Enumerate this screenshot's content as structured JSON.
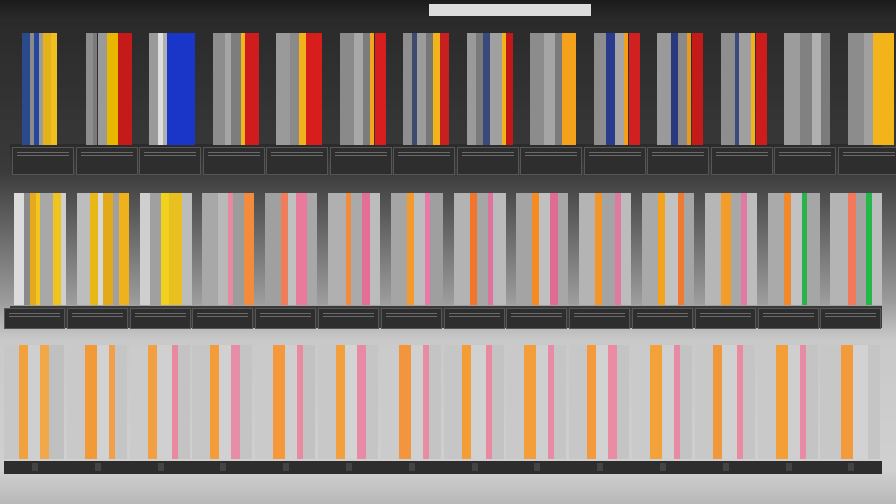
{
  "header": {
    "title": ""
  },
  "rows": [
    {
      "name": "top-row",
      "panels": [
        {
          "label": "",
          "stripes": [
            [
              "#2a4a8c",
              0.18
            ],
            [
              "#8b8b8b",
              0.08
            ],
            [
              "#27479a",
              0.1
            ],
            [
              "#9c9c9c",
              0.1
            ],
            [
              "#e6b21a",
              0.18
            ],
            [
              "#f0c020",
              0.12
            ]
          ]
        },
        {
          "label": "",
          "stripes": [
            [
              "#8d8d8d",
              0.15
            ],
            [
              "#7a7a7a",
              0.1
            ],
            [
              "#9a9a9a",
              0.2
            ],
            [
              "#e8b800",
              0.25
            ],
            [
              "#c41a1a",
              0.3
            ]
          ]
        },
        {
          "label": "",
          "stripes": [
            [
              "#9a9a9a",
              0.2
            ],
            [
              "#dedede",
              0.1
            ],
            [
              "#b0b0b0",
              0.1
            ],
            [
              "#1a36c8",
              0.6
            ]
          ]
        },
        {
          "label": "",
          "stripes": [
            [
              "#8d8d8d",
              0.25
            ],
            [
              "#a5a5a5",
              0.15
            ],
            [
              "#7d7d7d",
              0.2
            ],
            [
              "#f0b818",
              0.1
            ],
            [
              "#d01c1c",
              0.3
            ]
          ]
        },
        {
          "label": "",
          "stripes": [
            [
              "#9a9a9a",
              0.3
            ],
            [
              "#8a8a8a",
              0.2
            ],
            [
              "#f2b21c",
              0.15
            ],
            [
              "#d81d1d",
              0.35
            ]
          ]
        },
        {
          "label": "",
          "stripes": [
            [
              "#8a8a8a",
              0.3
            ],
            [
              "#a8a8a8",
              0.2
            ],
            [
              "#7c7c7c",
              0.15
            ],
            [
              "#f2a81a",
              0.1
            ],
            [
              "#d81e1e",
              0.25
            ]
          ]
        },
        {
          "label": "",
          "stripes": [
            [
              "#8e8e8e",
              0.2
            ],
            [
              "#3e4b6e",
              0.1
            ],
            [
              "#9c9c9c",
              0.2
            ],
            [
              "#777",
              0.15
            ],
            [
              "#f0b41a",
              0.15
            ],
            [
              "#c62020",
              0.2
            ]
          ]
        },
        {
          "label": "",
          "stripes": [
            [
              "#9a9a9a",
              0.2
            ],
            [
              "#7a7a7a",
              0.15
            ],
            [
              "#384a7a",
              0.15
            ],
            [
              "#a0a0a0",
              0.25
            ],
            [
              "#f0b41a",
              0.1
            ],
            [
              "#c41818",
              0.15
            ]
          ]
        },
        {
          "label": "",
          "stripes": [
            [
              "#8c8c8c",
              0.3
            ],
            [
              "#a5a5a5",
              0.25
            ],
            [
              "#7b7b7b",
              0.15
            ],
            [
              "#f4a11c",
              0.3
            ]
          ]
        },
        {
          "label": "",
          "stripes": [
            [
              "#8d8d8d",
              0.25
            ],
            [
              "#2a3b8e",
              0.2
            ],
            [
              "#a5a5a5",
              0.2
            ],
            [
              "#f2a01a",
              0.1
            ],
            [
              "#d21f1f",
              0.25
            ]
          ]
        },
        {
          "label": "",
          "stripes": [
            [
              "#9a9a9a",
              0.3
            ],
            [
              "#2a3a7c",
              0.15
            ],
            [
              "#8a8a8a",
              0.2
            ],
            [
              "#e89a1a",
              0.1
            ],
            [
              "#c51a1a",
              0.25
            ]
          ]
        },
        {
          "label": "",
          "stripes": [
            [
              "#8e8e8e",
              0.3
            ],
            [
              "#3b4a7c",
              0.1
            ],
            [
              "#a0a0a0",
              0.25
            ],
            [
              "#f2b21a",
              0.1
            ],
            [
              "#ce1c1c",
              0.25
            ]
          ]
        },
        {
          "label": "",
          "stripes": [
            [
              "#9c9c9c",
              0.35
            ],
            [
              "#818181",
              0.25
            ],
            [
              "#b0b0b0",
              0.2
            ],
            [
              "#7b7b7b",
              0.2
            ]
          ]
        },
        {
          "label": "",
          "stripes": [
            [
              "#8c8c8c",
              0.35
            ],
            [
              "#a0a0a0",
              0.2
            ],
            [
              "#f2b418",
              0.45
            ]
          ]
        }
      ]
    },
    {
      "name": "middle-row",
      "panels": [
        {
          "label": "",
          "stripes": [
            [
              "#dcdcdc",
              0.2
            ],
            [
              "#8a8a8a",
              0.1
            ],
            [
              "#e6a81c",
              0.12
            ],
            [
              "#f2c61e",
              0.08
            ],
            [
              "#a8a8a8",
              0.25
            ],
            [
              "#f0c420",
              0.15
            ],
            [
              "#cfcfcf",
              0.2
            ]
          ]
        },
        {
          "label": "",
          "stripes": [
            [
              "#bdbdbd",
              0.25
            ],
            [
              "#e8b818",
              0.15
            ],
            [
              "#d8d8d8",
              0.1
            ],
            [
              "#e2aa1a",
              0.2
            ],
            [
              "#a0a0a0",
              0.1
            ],
            [
              "#f0b21c",
              0.2
            ]
          ]
        },
        {
          "label": "",
          "stripes": [
            [
              "#cfcfcf",
              0.2
            ],
            [
              "#a0a0a0",
              0.2
            ],
            [
              "#f0d21e",
              0.15
            ],
            [
              "#e8c020",
              0.25
            ],
            [
              "#bcbcbc",
              0.2
            ]
          ]
        },
        {
          "label": "",
          "stripes": [
            [
              "#a8a8a8",
              0.3
            ],
            [
              "#b9b9b9",
              0.2
            ],
            [
              "#e889a0",
              0.1
            ],
            [
              "#9c9c9c",
              0.2
            ],
            [
              "#f28c3c",
              0.2
            ]
          ]
        },
        {
          "label": "",
          "stripes": [
            [
              "#a0a0a0",
              0.3
            ],
            [
              "#f07d5a",
              0.15
            ],
            [
              "#c0c0c0",
              0.15
            ],
            [
              "#e97a9b",
              0.2
            ],
            [
              "#a8a8a8",
              0.2
            ]
          ]
        },
        {
          "label": "",
          "stripes": [
            [
              "#b0b0b0",
              0.35
            ],
            [
              "#f28c3c",
              0.1
            ],
            [
              "#aaaaaa",
              0.2
            ],
            [
              "#e36e98",
              0.15
            ],
            [
              "#bcbcbc",
              0.2
            ]
          ]
        },
        {
          "label": "",
          "stripes": [
            [
              "#a5a5a5",
              0.3
            ],
            [
              "#f29a2c",
              0.15
            ],
            [
              "#bdbdbd",
              0.2
            ],
            [
              "#e879a8",
              0.1
            ],
            [
              "#9f9f9f",
              0.25
            ]
          ]
        },
        {
          "label": "",
          "stripes": [
            [
              "#b3b3b3",
              0.3
            ],
            [
              "#f2752e",
              0.15
            ],
            [
              "#a6a6a6",
              0.2
            ],
            [
              "#e0739e",
              0.1
            ],
            [
              "#bbbbbb",
              0.25
            ]
          ]
        },
        {
          "label": "",
          "stripes": [
            [
              "#a4a4a4",
              0.3
            ],
            [
              "#f58c22",
              0.15
            ],
            [
              "#c0c0c0",
              0.2
            ],
            [
              "#e06c94",
              0.15
            ],
            [
              "#a7a7a7",
              0.2
            ]
          ]
        },
        {
          "label": "",
          "stripes": [
            [
              "#b4b4b4",
              0.3
            ],
            [
              "#f2962a",
              0.15
            ],
            [
              "#a4a4a4",
              0.25
            ],
            [
              "#e079a0",
              0.1
            ],
            [
              "#bcbcbc",
              0.2
            ]
          ]
        },
        {
          "label": "",
          "stripes": [
            [
              "#a9a9a9",
              0.3
            ],
            [
              "#f5a21c",
              0.15
            ],
            [
              "#c2c2c2",
              0.25
            ],
            [
              "#f07a32",
              0.1
            ],
            [
              "#a5a5a5",
              0.2
            ]
          ]
        },
        {
          "label": "",
          "stripes": [
            [
              "#b6b6b6",
              0.3
            ],
            [
              "#f29c2a",
              0.2
            ],
            [
              "#a8a8a8",
              0.2
            ],
            [
              "#e07aa0",
              0.1
            ],
            [
              "#bdbdbd",
              0.2
            ]
          ]
        },
        {
          "label": "",
          "stripes": [
            [
              "#aaaaaa",
              0.3
            ],
            [
              "#f28a2c",
              0.15
            ],
            [
              "#c2c2c2",
              0.2
            ],
            [
              "#2bb24c",
              0.1
            ],
            [
              "#a6a6a6",
              0.25
            ]
          ]
        },
        {
          "label": "",
          "stripes": [
            [
              "#b4b4b4",
              0.35
            ],
            [
              "#f27a5a",
              0.15
            ],
            [
              "#a3a3a3",
              0.2
            ],
            [
              "#22b84a",
              0.1
            ],
            [
              "#bdbdbd",
              0.2
            ]
          ]
        }
      ]
    },
    {
      "name": "bottom-row",
      "panels": [
        {
          "label": "",
          "stripes": [
            [
              "#c7c7c7",
              0.25
            ],
            [
              "#f2a23c",
              0.15
            ],
            [
              "#cfcfcf",
              0.2
            ],
            [
              "#f0a84a",
              0.15
            ],
            [
              "#c0c0c0",
              0.25
            ]
          ]
        },
        {
          "label": "",
          "stripes": [
            [
              "#c9c9c9",
              0.3
            ],
            [
              "#f39a38",
              0.2
            ],
            [
              "#d2d2d2",
              0.2
            ],
            [
              "#f0a04a",
              0.1
            ],
            [
              "#c5c5c5",
              0.2
            ]
          ]
        },
        {
          "label": "",
          "stripes": [
            [
              "#cbcbcb",
              0.3
            ],
            [
              "#f2a043",
              0.15
            ],
            [
              "#d0d0d0",
              0.25
            ],
            [
              "#e889a0",
              0.1
            ],
            [
              "#c3c3c3",
              0.2
            ]
          ]
        },
        {
          "label": "",
          "stripes": [
            [
              "#c6c6c6",
              0.3
            ],
            [
              "#f59c3a",
              0.15
            ],
            [
              "#d1d1d1",
              0.2
            ],
            [
              "#e68da8",
              0.15
            ],
            [
              "#c4c4c4",
              0.2
            ]
          ]
        },
        {
          "label": "",
          "stripes": [
            [
              "#cacaca",
              0.3
            ],
            [
              "#f5983c",
              0.2
            ],
            [
              "#cfcfcf",
              0.2
            ],
            [
              "#ea8aa0",
              0.1
            ],
            [
              "#c2c2c2",
              0.2
            ]
          ]
        },
        {
          "label": "",
          "stripes": [
            [
              "#c8c8c8",
              0.3
            ],
            [
              "#f3a03c",
              0.15
            ],
            [
              "#d3d3d3",
              0.2
            ],
            [
              "#e88aa6",
              0.15
            ],
            [
              "#c5c5c5",
              0.2
            ]
          ]
        },
        {
          "label": "",
          "stripes": [
            [
              "#cbcbcb",
              0.3
            ],
            [
              "#f2953c",
              0.2
            ],
            [
              "#d0d0d0",
              0.2
            ],
            [
              "#e88ca4",
              0.1
            ],
            [
              "#c4c4c4",
              0.2
            ]
          ]
        },
        {
          "label": "",
          "stripes": [
            [
              "#c6c6c6",
              0.3
            ],
            [
              "#f49d36",
              0.15
            ],
            [
              "#d1d1d1",
              0.25
            ],
            [
              "#ea8aa0",
              0.1
            ],
            [
              "#c3c3c3",
              0.2
            ]
          ]
        },
        {
          "label": "",
          "stripes": [
            [
              "#c9c9c9",
              0.3
            ],
            [
              "#f39e3a",
              0.2
            ],
            [
              "#cfcfcf",
              0.2
            ],
            [
              "#e78ba6",
              0.1
            ],
            [
              "#c5c5c5",
              0.2
            ]
          ]
        },
        {
          "label": "",
          "stripes": [
            [
              "#c7c7c7",
              0.3
            ],
            [
              "#f59a3c",
              0.15
            ],
            [
              "#d2d2d2",
              0.2
            ],
            [
              "#ea8ca2",
              0.15
            ],
            [
              "#c4c4c4",
              0.2
            ]
          ]
        },
        {
          "label": "",
          "stripes": [
            [
              "#cacaca",
              0.3
            ],
            [
              "#f3a23a",
              0.2
            ],
            [
              "#d0d0d0",
              0.2
            ],
            [
              "#e88aa4",
              0.1
            ],
            [
              "#c3c3c3",
              0.2
            ]
          ]
        },
        {
          "label": "",
          "stripes": [
            [
              "#c8c8c8",
              0.3
            ],
            [
              "#f2983c",
              0.15
            ],
            [
              "#d1d1d1",
              0.25
            ],
            [
              "#ea8aa0",
              0.1
            ],
            [
              "#c5c5c5",
              0.2
            ]
          ]
        },
        {
          "label": "",
          "stripes": [
            [
              "#c9c9c9",
              0.3
            ],
            [
              "#f49e38",
              0.2
            ],
            [
              "#cfcfcf",
              0.2
            ],
            [
              "#e88ba4",
              0.1
            ],
            [
              "#c4c4c4",
              0.2
            ]
          ]
        },
        {
          "label": "",
          "stripes": [
            [
              "#c7c7c7",
              0.35
            ],
            [
              "#f29a3c",
              0.2
            ],
            [
              "#d2d2d2",
              0.25
            ],
            [
              "#c5c5c5",
              0.2
            ]
          ]
        }
      ]
    }
  ]
}
